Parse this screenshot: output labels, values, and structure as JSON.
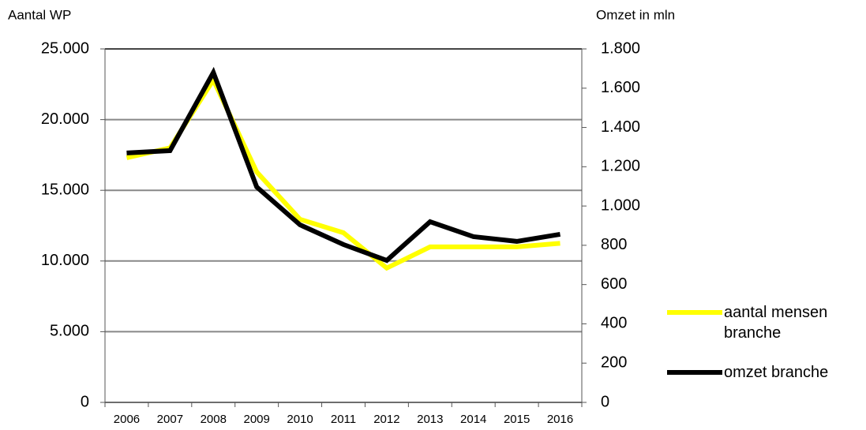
{
  "chart_data": {
    "type": "line",
    "y_label": "Aantal WP",
    "y2_label": "Omzet in mln",
    "categories": [
      "2006",
      "2007",
      "2008",
      "2009",
      "2010",
      "2011",
      "2012",
      "2013",
      "2014",
      "2015",
      "2016"
    ],
    "series": [
      {
        "name": "aantal mensen branche",
        "color": "#ffff00",
        "values": [
          17300,
          18000,
          22800,
          16300,
          12950,
          12000,
          9500,
          11000,
          11000,
          11000,
          11250
        ]
      },
      {
        "name": "omzet branche",
        "color": "#000000",
        "axis": "y2",
        "values": [
          1270,
          1282,
          1680,
          1097,
          904,
          804,
          723,
          920,
          844,
          820,
          856
        ]
      }
    ],
    "ylim": [
      0,
      25000
    ],
    "yticks": [
      0,
      {
        "value": 5000,
        "label": "5.000"
      },
      {
        "value": 10000,
        "label": "10.000"
      },
      {
        "value": 15000,
        "label": "15.000"
      },
      {
        "value": 20000,
        "label": "20.000"
      },
      {
        "value": 25000,
        "label": "25.000"
      }
    ],
    "y2lim": [
      0,
      1800
    ],
    "y2ticks": [
      0,
      200,
      400,
      600,
      800,
      {
        "value": 1000,
        "label": "1.000"
      },
      {
        "value": 1200,
        "label": "1.200"
      },
      {
        "value": 1400,
        "label": "1.400"
      },
      {
        "value": 1600,
        "label": "1.600"
      },
      {
        "value": 1800,
        "label": "1.800"
      }
    ],
    "grid": true,
    "legend": "right"
  }
}
